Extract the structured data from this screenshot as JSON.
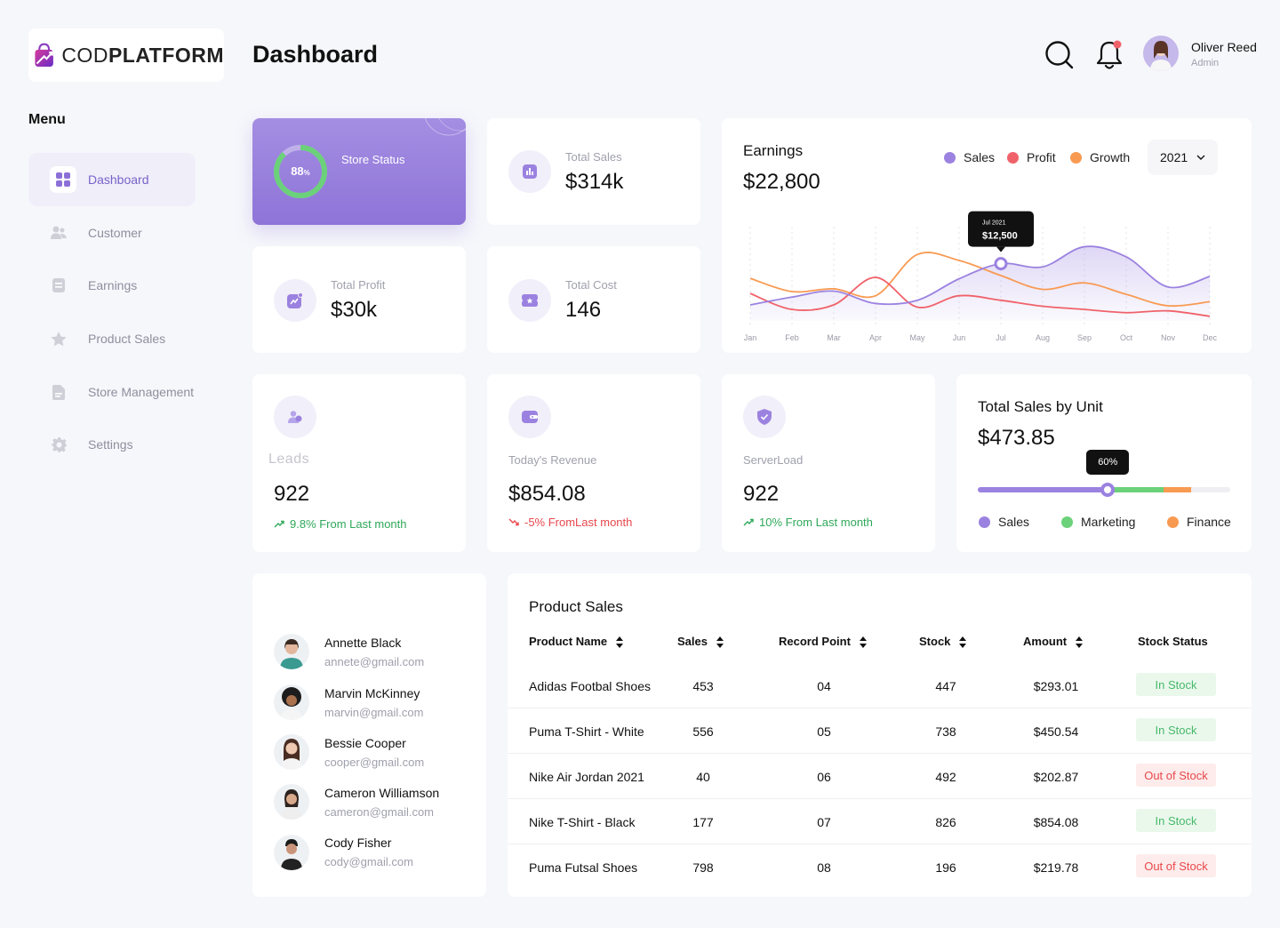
{
  "brand": {
    "name_light": "COD",
    "name_bold": "PLATFORM"
  },
  "sidebar": {
    "title": "Menu",
    "items": [
      {
        "label": "Dashboard",
        "icon": "grid-icon",
        "active": true
      },
      {
        "label": "Customer",
        "icon": "users-icon"
      },
      {
        "label": "Earnings",
        "icon": "document-icon"
      },
      {
        "label": "Product Sales",
        "icon": "star-icon"
      },
      {
        "label": "Store Management",
        "icon": "file-icon"
      },
      {
        "label": "Settings",
        "icon": "gear-icon"
      }
    ]
  },
  "header": {
    "title": "Dashboard",
    "user": {
      "name": "Oliver Reed",
      "role": "Admin"
    }
  },
  "colors": {
    "accent": "#8b70d8",
    "sales": "#9b82e0",
    "profit": "#f0626a",
    "growth": "#f89a52",
    "marketing": "#6bd17a"
  },
  "store_status": {
    "label": "Store Status",
    "percent": "88",
    "percent_sign": "%",
    "value": 0.88
  },
  "stats": {
    "total_sales": {
      "label": "Total Sales",
      "value": "$314k"
    },
    "total_profit": {
      "label": "Total Profit",
      "value": "$30k"
    },
    "total_cost": {
      "label": "Total Cost",
      "value": "146"
    }
  },
  "earnings": {
    "title": "Earnings",
    "value": "$22,800",
    "year": "2021",
    "legend": [
      "Sales",
      "Profit",
      "Growth"
    ],
    "tooltip": {
      "date": "Jul 2021",
      "value": "$12,500"
    }
  },
  "kpis": {
    "leads": {
      "label": "Leads",
      "value": "922",
      "trend": "9.8% From Last month"
    },
    "revenue": {
      "label": "Today's Revenue",
      "value": "$854.08",
      "trend": "-5% FromLast month"
    },
    "server": {
      "label": "ServerLoad",
      "value": "922",
      "trend": "10% From Last month"
    }
  },
  "sales_by_unit": {
    "title": "Total Sales by Unit",
    "value": "$473.85",
    "tooltip": "60%",
    "legend": [
      "Sales",
      "Marketing",
      "Finance"
    ],
    "segments": [
      0.515,
      0.22,
      0.11
    ]
  },
  "contacts": [
    {
      "name": "Annette Black",
      "email": "annete@gmail.com"
    },
    {
      "name": "Marvin McKinney",
      "email": "marvin@gmail.com"
    },
    {
      "name": "Bessie Cooper",
      "email": "cooper@gmail.com"
    },
    {
      "name": "Cameron Williamson",
      "email": "cameron@gmail.com"
    },
    {
      "name": "Cody Fisher",
      "email": "cody@gmail.com"
    }
  ],
  "product_sales": {
    "title": "Product Sales",
    "columns": [
      "Product Name",
      "Sales",
      "Record Point",
      "Stock",
      "Amount",
      "Stock Status"
    ],
    "rows": [
      {
        "name": "Adidas Footbal Shoes",
        "sales": "453",
        "record": "04",
        "stock": "447",
        "amount": "$293.01",
        "status": "In Stock",
        "in": true
      },
      {
        "name": "Puma T-Shirt - White",
        "sales": "556",
        "record": "05",
        "stock": "738",
        "amount": "$450.54",
        "status": "In Stock",
        "in": true
      },
      {
        "name": "Nike Air Jordan 2021",
        "sales": "40",
        "record": "06",
        "stock": "492",
        "amount": "$202.87",
        "status": "Out of Stock",
        "in": false
      },
      {
        "name": "Nike T-Shirt - Black",
        "sales": "177",
        "record": "07",
        "stock": "826",
        "amount": "$854.08",
        "status": "In Stock",
        "in": true
      },
      {
        "name": "Puma Futsal Shoes",
        "sales": "798",
        "record": "08",
        "stock": "196",
        "amount": "$219.78",
        "status": "Out of Stock",
        "in": false
      }
    ]
  },
  "chart_data": {
    "type": "line",
    "title": "Earnings",
    "categories": [
      "Jan",
      "Feb",
      "Mar",
      "Apr",
      "May",
      "Jun",
      "Jul",
      "Aug",
      "Sep",
      "Oct",
      "Nov",
      "Dec"
    ],
    "series": [
      {
        "name": "Sales",
        "values": [
          3.5,
          5.2,
          6.5,
          3.8,
          4.5,
          9.2,
          12.5,
          11.8,
          16.2,
          14.0,
          7.4,
          9.7
        ]
      },
      {
        "name": "Profit",
        "values": [
          6.0,
          2.5,
          3.5,
          9.5,
          3.0,
          5.5,
          4.5,
          3.2,
          2.5,
          1.8,
          2.2,
          1.0
        ]
      },
      {
        "name": "Growth",
        "values": [
          9.3,
          6.4,
          7.0,
          5.5,
          14.5,
          13.2,
          9.9,
          6.9,
          8.3,
          5.8,
          3.3,
          4.2
        ]
      }
    ],
    "tooltip": {
      "x": "Jul",
      "value": 12.5,
      "label": "$12,500"
    },
    "ylim": [
      0,
      20
    ],
    "grid": "vertical-dotted",
    "legend": "top-right"
  }
}
